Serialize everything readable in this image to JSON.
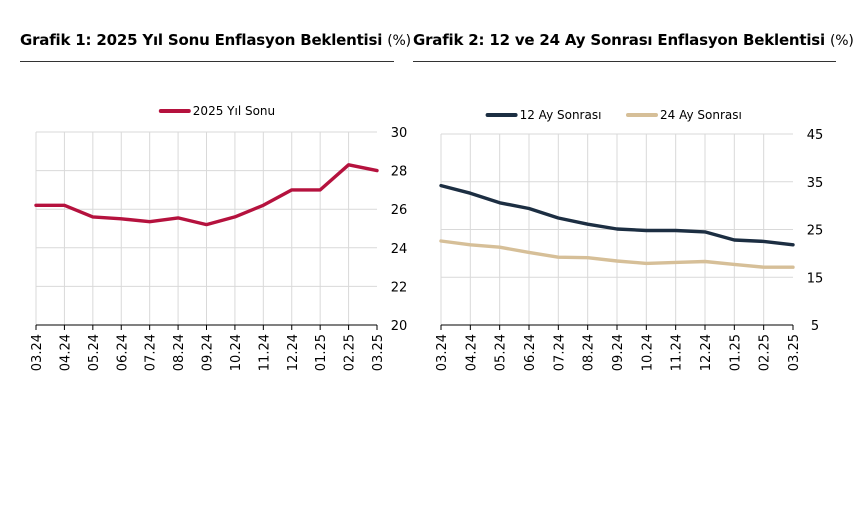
{
  "charts": {
    "left_title": "Grafik 1: 2025 Yıl Sonu Enflasyon Beklentisi",
    "left_unit": "(%)",
    "right_title": "Grafik 2: 12 ve 24 Ay Sonrası Enflasyon Beklentisi",
    "right_unit": "(%)"
  },
  "chart_data": [
    {
      "type": "line",
      "x": [
        "03.24",
        "04.24",
        "05.24",
        "06.24",
        "07.24",
        "08.24",
        "09.24",
        "10.24",
        "11.24",
        "12.24",
        "01.25",
        "02.25",
        "03.25"
      ],
      "series": [
        {
          "name": "2025 Yıl Sonu",
          "color": "#b5123e",
          "values": [
            26.2,
            26.2,
            25.6,
            25.5,
            25.35,
            25.55,
            25.2,
            25.6,
            26.2,
            27.0,
            27.0,
            28.3,
            28.0
          ]
        }
      ],
      "ylim": [
        20,
        30
      ],
      "yticks": [
        20,
        22,
        24,
        26,
        28,
        30
      ],
      "y_axis_side": "right",
      "grid": true,
      "legend": "top-center"
    },
    {
      "type": "line",
      "x": [
        "03.24",
        "04.24",
        "05.24",
        "06.24",
        "07.24",
        "08.24",
        "09.24",
        "10.24",
        "11.24",
        "12.24",
        "01.25",
        "02.25",
        "03.25"
      ],
      "series": [
        {
          "name": "12 Ay Sonrası",
          "color": "#1c2e42",
          "values": [
            34.2,
            32.6,
            30.6,
            29.4,
            27.4,
            26.1,
            25.1,
            24.8,
            24.8,
            24.5,
            22.8,
            22.5,
            21.8
          ]
        },
        {
          "name": "24 Ay Sonrası",
          "color": "#d6bf98",
          "values": [
            22.6,
            21.8,
            21.3,
            20.2,
            19.2,
            19.1,
            18.4,
            17.9,
            18.1,
            18.3,
            17.7,
            17.1,
            17.1
          ]
        }
      ],
      "ylim": [
        5,
        45
      ],
      "yticks": [
        5,
        15,
        25,
        35,
        45
      ],
      "y_axis_side": "right",
      "grid": true,
      "legend": "top-center"
    }
  ]
}
